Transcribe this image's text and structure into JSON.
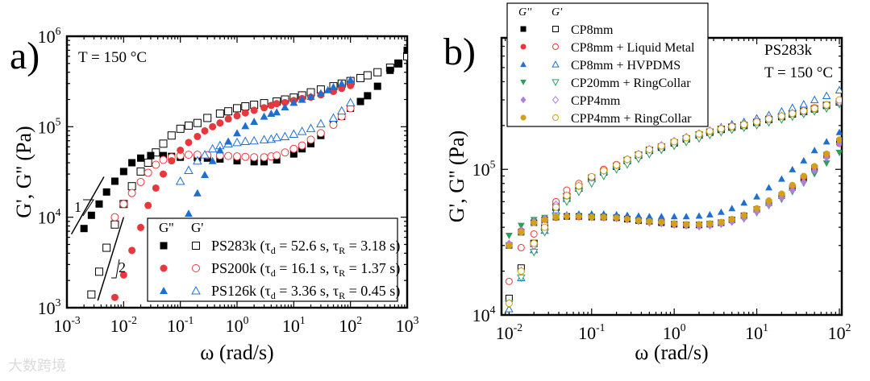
{
  "watermark": "大数跨境",
  "chart_data": [
    {
      "type": "scatter",
      "panel_label": "a)",
      "annotation": "T = 150 °C",
      "xlabel": "ω (rad/s)",
      "ylabel": "G', G'' (Pa)",
      "xscale": "log",
      "yscale": "log",
      "xlim": [
        0.001,
        1000
      ],
      "ylim": [
        1000,
        1000000
      ],
      "xtick_exponents": [
        -3,
        -2,
        -1,
        0,
        1,
        2,
        3
      ],
      "ytick_exponents": [
        3,
        4,
        5,
        6
      ],
      "legend_position": "bottom-right",
      "legend_headers": [
        "G''",
        "G'"
      ],
      "slope_labels": [
        "1",
        "2"
      ],
      "slope_lines": [
        {
          "label": "1",
          "from": [
            0.0012,
            6500
          ],
          "to": [
            0.0045,
            28000
          ]
        },
        {
          "label": "2",
          "from": [
            0.0035,
            1200
          ],
          "to": [
            0.01,
            10000
          ]
        }
      ],
      "series": [
        {
          "name": "PS283k (τd = 52.6 s, τR = 3.18 s)",
          "label_main": "PS283k (τ",
          "td": "52.6 s",
          "tR": "3.18 s",
          "marker": "square",
          "color": "#000000",
          "gpp": {
            "x": [
              0.002,
              0.0027,
              0.0037,
              0.005,
              0.007,
              0.01,
              0.014,
              0.02,
              0.03,
              0.05,
              0.07,
              0.1,
              0.2,
              0.3,
              0.5,
              1,
              2,
              3,
              5,
              10,
              14,
              20,
              30,
              50,
              70,
              100,
              150,
              200,
              300,
              500,
              700,
              1000
            ],
            "y": [
              7500,
              10500,
              14000,
              19000,
              25000,
              32000,
              40000,
              45000,
              48000,
              48000,
              47000,
              46000,
              45500,
              45000,
              44000,
              42000,
              41000,
              41000,
              43000,
              50000,
              57000,
              65000,
              80000,
              110000,
              130000,
              160000,
              190000,
              220000,
              280000,
              420000,
              500000,
              700000
            ]
          },
          "gp": {
            "x": [
              0.0027,
              0.0037,
              0.005,
              0.007,
              0.01,
              0.014,
              0.02,
              0.027,
              0.037,
              0.05,
              0.07,
              0.1,
              0.14,
              0.2,
              0.3,
              0.5,
              0.7,
              1,
              1.4,
              2,
              3,
              5,
              7,
              10,
              14,
              20,
              30,
              50,
              70,
              100,
              150,
              200,
              300,
              500,
              700,
              1000
            ],
            "y": [
              1400,
              2500,
              4600,
              8300,
              14000,
              22000,
              32000,
              40000,
              52000,
              65000,
              80000,
              95000,
              103000,
              110000,
              125000,
              140000,
              148000,
              160000,
              168000,
              175000,
              182000,
              190000,
              200000,
              210000,
              222000,
              240000,
              258000,
              280000,
              300000,
              320000,
              345000,
              370000,
              400000,
              450000,
              500000,
              600000
            ]
          }
        },
        {
          "name": "PS200k (τd = 16.1 s, τR = 1.37 s)",
          "label_main": "PS200k (τ",
          "td": "16.1 s",
          "tR": "1.37 s",
          "marker": "circle",
          "color": "#e8383d",
          "gpp": {
            "x": [
              0.007,
              0.01,
              0.014,
              0.02,
              0.027,
              0.037,
              0.05,
              0.07,
              0.1,
              0.14,
              0.2,
              0.27,
              0.37,
              0.5,
              0.7,
              1,
              1.4,
              2,
              3,
              4,
              5,
              7,
              10,
              14,
              20,
              30,
              50,
              70,
              100
            ],
            "y": [
              1300,
              2300,
              4300,
              7700,
              13500,
              21000,
              30000,
              42000,
              55000,
              67000,
              78000,
              90000,
              100000,
              110000,
              122000,
              132000,
              142000,
              152000,
              162000,
              172000,
              180000,
              185000,
              195000,
              205000,
              212000,
              225000,
              245000,
              265000,
              285000
            ]
          },
          "gp": {
            "x": [
              0.007,
              0.01,
              0.014,
              0.02,
              0.027,
              0.037,
              0.05,
              0.07,
              0.1,
              0.14,
              0.2,
              0.3,
              0.5,
              0.7,
              1,
              1.4,
              2,
              3,
              4,
              5,
              7,
              10,
              14,
              20,
              30,
              50,
              70,
              100
            ],
            "y": [
              10000,
              14000,
              18500,
              24500,
              31000,
              38000,
              43000,
              46000,
              48000,
              49000,
              49000,
              48500,
              48000,
              47500,
              47000,
              46500,
              46000,
              46000,
              47000,
              48000,
              52000,
              57000,
              62000,
              72000,
              85000,
              105000,
              130000,
              160000
            ]
          }
        },
        {
          "name": "PS126k (τd = 3.36 s, τR = 0.45 s)",
          "label_main": "PS126k (τ",
          "td": "3.36 s",
          "tR": "0.45 s",
          "marker": "triangle",
          "color": "#1f6fd1",
          "gpp": {
            "x": [
              0.14,
              0.2,
              0.27,
              0.37,
              0.5,
              0.7,
              1,
              1.4,
              2,
              3,
              4,
              5,
              7,
              10,
              14,
              20,
              30,
              40,
              50,
              70,
              100
            ],
            "y": [
              11000,
              18500,
              29500,
              42000,
              55000,
              69000,
              85000,
              102000,
              114000,
              130000,
              140000,
              145000,
              165000,
              185000,
              200000,
              215000,
              235000,
              255000,
              275000,
              300000,
              330000
            ]
          },
          "gp": {
            "x": [
              0.1,
              0.14,
              0.2,
              0.27,
              0.37,
              0.5,
              0.7,
              1,
              1.4,
              2,
              3,
              4,
              5,
              7,
              10,
              14,
              20,
              30,
              50,
              70,
              100
            ],
            "y": [
              25000,
              33000,
              42000,
              49000,
              57000,
              62000,
              65000,
              67000,
              69000,
              70000,
              72000,
              73000,
              76000,
              78000,
              83000,
              89000,
              96000,
              108000,
              125000,
              150000,
              185000
            ]
          }
        }
      ]
    },
    {
      "type": "scatter",
      "panel_label": "b)",
      "annotations": [
        "PS283k",
        "T = 150 °C"
      ],
      "xlabel": "ω (rad/s)",
      "ylabel": "G', G'' (Pa)",
      "xscale": "log",
      "yscale": "log",
      "xlim": [
        0.0081,
        107
      ],
      "ylim": [
        10000,
        800000
      ],
      "xtick_exponents": [
        -2,
        -1,
        0,
        1,
        2
      ],
      "ytick_exponents": [
        4,
        5
      ],
      "legend_position": "top-left",
      "legend_headers": [
        "G''",
        "G'"
      ],
      "x": [
        0.01,
        0.014,
        0.02,
        0.027,
        0.037,
        0.05,
        0.07,
        0.1,
        0.14,
        0.2,
        0.27,
        0.37,
        0.5,
        0.7,
        1,
        1.4,
        2,
        2.7,
        3.7,
        5,
        7,
        10,
        14,
        20,
        27,
        37,
        50,
        70,
        100
      ],
      "series": [
        {
          "name": "CP8mm",
          "marker": "square",
          "color": "#000000",
          "gpp": [
            30000,
            37000,
            43000,
            45000,
            47000,
            47500,
            47500,
            47000,
            47000,
            46500,
            45500,
            44500,
            44000,
            43000,
            42000,
            41500,
            41500,
            42000,
            43000,
            45000,
            48000,
            53000,
            59000,
            66000,
            75000,
            87000,
            102000,
            125000,
            155000
          ],
          "gp": [
            13000,
            21000,
            31000,
            40000,
            55000,
            65000,
            75000,
            87000,
            96000,
            105000,
            115000,
            125000,
            135000,
            142000,
            152000,
            162000,
            172000,
            180000,
            188000,
            195000,
            200000,
            210000,
            220000,
            230000,
            240000,
            250000,
            260000,
            275000,
            290000
          ]
        },
        {
          "name": "CP8mm + Liquid Metal",
          "marker": "circle",
          "color": "#e8383d",
          "gpp": [
            30000,
            38000,
            43000,
            45000,
            46500,
            47500,
            47000,
            47000,
            46500,
            46500,
            45500,
            44500,
            44000,
            43500,
            42000,
            41500,
            41500,
            42000,
            43000,
            45000,
            48000,
            53000,
            60000,
            67000,
            76000,
            88000,
            103000,
            124000,
            150000
          ],
          "gp": [
            17000,
            29000,
            36000,
            45000,
            60000,
            72000,
            80000,
            89000,
            100000,
            108000,
            117000,
            127000,
            137000,
            145000,
            155000,
            165000,
            175000,
            183000,
            190000,
            196000,
            203000,
            212000,
            222000,
            232000,
            242000,
            252000,
            265000,
            278000,
            295000
          ]
        },
        {
          "name": "CP8mm + HVPDMS",
          "marker": "triangle",
          "color": "#1f6fd1",
          "gpp": [
            30000,
            37000,
            43000,
            46000,
            48000,
            49000,
            49500,
            49500,
            49500,
            49000,
            48500,
            48000,
            47500,
            47500,
            47500,
            47500,
            48000,
            49000,
            51000,
            54000,
            59000,
            65000,
            75000,
            86000,
            100000,
            115000,
            135000,
            155000,
            180000
          ],
          "gp": [
            11000,
            18000,
            28000,
            38000,
            52000,
            63000,
            74000,
            86000,
            97000,
            106000,
            116000,
            126000,
            136000,
            145000,
            155000,
            166000,
            176000,
            185000,
            195000,
            204000,
            212000,
            224000,
            236000,
            250000,
            265000,
            280000,
            300000,
            320000,
            350000
          ]
        },
        {
          "name": "CP20mm + RingCollar",
          "marker": "triangle-down",
          "color": "#2e9e5e",
          "gpp": [
            35000,
            41000,
            45000,
            46500,
            47000,
            47000,
            47000,
            46500,
            46500,
            46000,
            45000,
            44000,
            43500,
            42500,
            41500,
            41000,
            41000,
            41000,
            42000,
            43500,
            45500,
            50000,
            56000,
            62000,
            70000,
            80000,
            93000,
            110000,
            130000
          ],
          "gp": [
            12000,
            18000,
            27000,
            37000,
            48000,
            60000,
            70000,
            80000,
            90000,
            100000,
            108000,
            118000,
            127000,
            136000,
            145000,
            154000,
            163000,
            172000,
            180000,
            187000,
            193000,
            201000,
            210000,
            220000,
            230000,
            240000,
            250000,
            262000,
            280000
          ]
        },
        {
          "name": "CPP4mm",
          "marker": "diamond",
          "color": "#b07fe0",
          "gpp": [
            31000,
            38000,
            44000,
            46000,
            48000,
            48000,
            47500,
            47000,
            46500,
            46000,
            45000,
            44000,
            43000,
            42500,
            41500,
            41000,
            40500,
            41000,
            42000,
            43500,
            46000,
            51000,
            57000,
            64000,
            72000,
            82000,
            98000,
            120000,
            150000
          ],
          "gp": [
            12000,
            20000,
            30000,
            42000,
            57000,
            66000,
            77000,
            88000,
            98000,
            107000,
            117000,
            127000,
            137000,
            146000,
            156000,
            166000,
            176000,
            184000,
            192000,
            198000,
            204000,
            213000,
            223000,
            233000,
            243000,
            253000,
            262000,
            275000,
            290000
          ]
        },
        {
          "name": "CPP4mm + RingCollar",
          "marker": "circle",
          "color": "#d4a017",
          "gpp": [
            30000,
            37000,
            43000,
            45000,
            47000,
            47500,
            47500,
            47000,
            47000,
            46500,
            45500,
            44500,
            44000,
            43500,
            42500,
            42000,
            42000,
            42500,
            43500,
            45500,
            48500,
            54000,
            61000,
            68000,
            78000,
            90000,
            105000,
            128000,
            160000
          ],
          "gp": [
            12000,
            20000,
            31000,
            40000,
            55000,
            66000,
            77000,
            89000,
            98000,
            107000,
            117000,
            127000,
            137000,
            145000,
            155000,
            165000,
            175000,
            183000,
            190000,
            197000,
            203000,
            212000,
            222000,
            232000,
            242000,
            252000,
            262000,
            277000,
            300000
          ]
        }
      ]
    }
  ]
}
